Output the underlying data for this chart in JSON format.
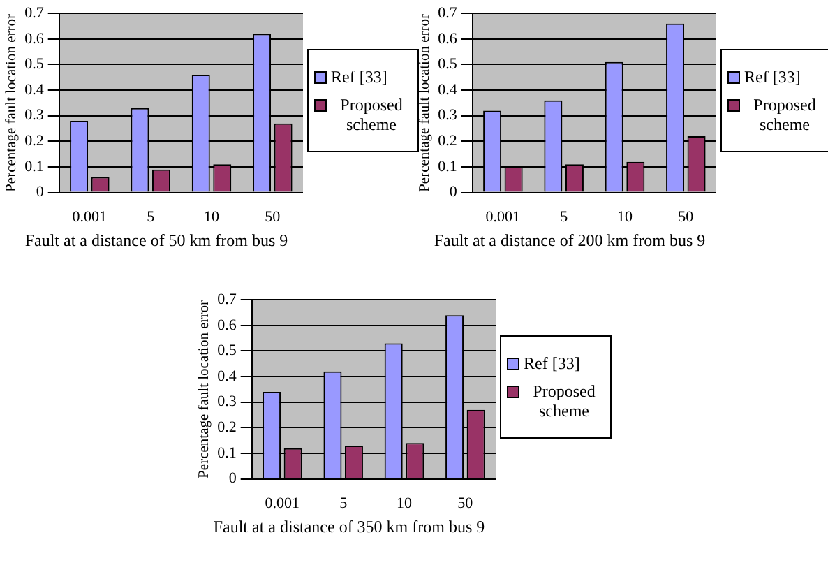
{
  "chart_data": [
    {
      "type": "bar",
      "xlabel": "Fault at a distance of 50 km from bus 9",
      "ylabel": "Percentage fault location error",
      "categories": [
        "0.001",
        "5",
        "10",
        "50"
      ],
      "series": [
        {
          "name": "Ref [33]",
          "color": "#9999ff",
          "values": [
            0.28,
            0.33,
            0.46,
            0.62
          ]
        },
        {
          "name": "Proposed scheme",
          "color": "#993366",
          "values": [
            0.06,
            0.09,
            0.11,
            0.27
          ]
        }
      ],
      "ylim": [
        0,
        0.7
      ],
      "yticks": [
        0,
        0.1,
        0.2,
        0.3,
        0.4,
        0.5,
        0.6,
        0.7
      ],
      "grid": "y",
      "legend": "right"
    },
    {
      "type": "bar",
      "xlabel": "Fault at a distance of 200 km from bus 9",
      "ylabel": "Percentage fault location error",
      "categories": [
        "0.001",
        "5",
        "10",
        "50"
      ],
      "series": [
        {
          "name": "Ref [33]",
          "color": "#9999ff",
          "values": [
            0.32,
            0.36,
            0.51,
            0.66
          ]
        },
        {
          "name": "Proposed scheme",
          "color": "#993366",
          "values": [
            0.1,
            0.11,
            0.12,
            0.22
          ]
        }
      ],
      "ylim": [
        0,
        0.7
      ],
      "yticks": [
        0,
        0.1,
        0.2,
        0.3,
        0.4,
        0.5,
        0.6,
        0.7
      ],
      "grid": "y",
      "legend": "right"
    },
    {
      "type": "bar",
      "xlabel": "Fault at a distance of 350 km from bus 9",
      "ylabel": "Percentage fault location error",
      "categories": [
        "0.001",
        "5",
        "10",
        "50"
      ],
      "series": [
        {
          "name": "Ref [33]",
          "color": "#9999ff",
          "values": [
            0.34,
            0.42,
            0.53,
            0.64
          ]
        },
        {
          "name": "Proposed scheme",
          "color": "#993366",
          "values": [
            0.12,
            0.13,
            0.14,
            0.27
          ]
        }
      ],
      "ylim": [
        0,
        0.7
      ],
      "yticks": [
        0,
        0.1,
        0.2,
        0.3,
        0.4,
        0.5,
        0.6,
        0.7
      ],
      "grid": "y",
      "legend": "right"
    }
  ]
}
